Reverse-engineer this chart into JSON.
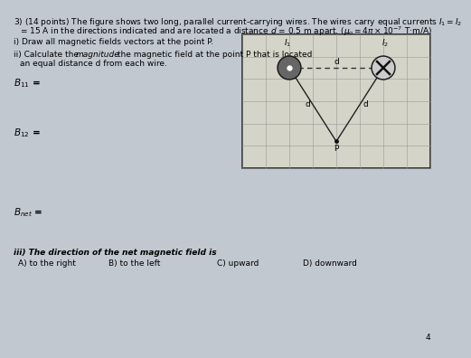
{
  "background_color": "#c2c8d0",
  "title_line1": "3) (14 points) The figure shows two long, parallel current-carrying wires. The wires carry equal currents $I_1 = I_2$",
  "title_line2": "= 15 A in the directions indicated and are located a distance $d$ = 0.5 m apart. ($\\mu_o = 4\\pi \\times 10^{-7}$ T·m/A)",
  "q_i": "i) Draw all magnetic fields vectors at the point P.",
  "q_ii_line1": "ii) Calculate the ",
  "q_ii_italic": "magnitude",
  "q_ii_line1b": " the magnetic field at the point P that is located",
  "q_ii_line2": "an equal distance d from each wire.",
  "B11_label": "$B_{11}$ =",
  "B12_label": "$B_{12}$ =",
  "Bnet_label": "$B_{net}$ =",
  "q_iii": "iii) The direction of the net magnetic field is",
  "choice_A": "A) to the right",
  "choice_B": "B) to the left",
  "choice_C": "C) upward",
  "choice_D": "D) downward",
  "page_num": "4",
  "diagram": {
    "wire1_label": "$I_1$",
    "wire2_label": "$I_2$",
    "d_top": "d",
    "d_left": "d",
    "d_right": "d",
    "P_label": "P",
    "grid_color": "#999999",
    "box_color": "#d4d4c8"
  }
}
